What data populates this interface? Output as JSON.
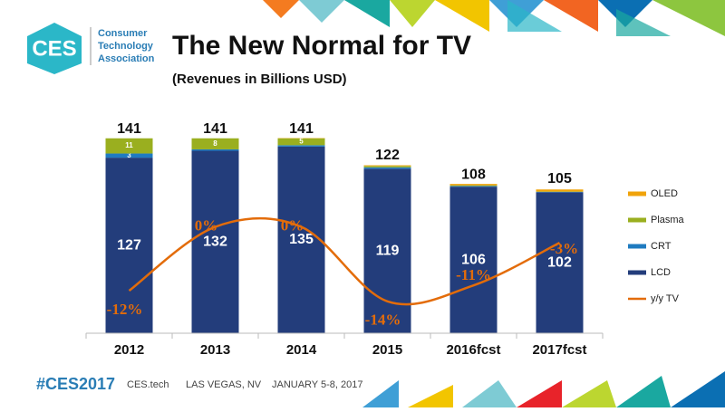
{
  "header": {
    "logo": "CES",
    "org": [
      "Consumer",
      "Technology",
      "Association"
    ]
  },
  "chart_data": {
    "type": "stacked_bar_line",
    "title": "The New Normal for TV",
    "subtitle": "(Revenues in Billions  USD)",
    "categories": [
      "2012",
      "2013",
      "2014",
      "2015",
      "2016fcst",
      "2017fcst"
    ],
    "totals": [
      141,
      141,
      141,
      122,
      108,
      105
    ],
    "ylim": [
      0,
      150
    ],
    "y2lim": [
      -20,
      19
    ],
    "series": [
      {
        "name": "LCD",
        "color": "#233d7b",
        "values": [
          127,
          132,
          135,
          119,
          106,
          102
        ],
        "value_labels": [
          "127",
          "132",
          "135",
          "119",
          "106",
          "102"
        ]
      },
      {
        "name": "CRT",
        "color": "#1f7bc0",
        "values": [
          3,
          1,
          1,
          1,
          0.5,
          0.3
        ],
        "value_labels": [
          "3",
          null,
          null,
          null,
          null,
          null
        ]
      },
      {
        "name": "Plasma",
        "color": "#9aaf1f",
        "values": [
          11,
          8,
          5,
          1,
          0.5,
          0.2
        ],
        "value_labels": [
          "11",
          "8",
          "5",
          null,
          null,
          null
        ]
      },
      {
        "name": "OLED",
        "color": "#f0a30a",
        "values": [
          0,
          0,
          0.2,
          0.5,
          1,
          1.5
        ],
        "value_labels": [
          null,
          null,
          null,
          null,
          null,
          null
        ]
      },
      {
        "name": "y/y TV",
        "color": "#e36c0a",
        "axis": "y2",
        "values": [
          -12,
          0,
          0,
          -14,
          -11,
          -3
        ],
        "value_labels": [
          "-12%",
          "0%",
          "0%",
          "-14%",
          "-11%",
          "-3%"
        ]
      }
    ]
  },
  "footer": {
    "tag": "#CES2017",
    "site": "CES.tech",
    "place": "LAS VEGAS, NV",
    "date": "JANUARY 5-8, 2017"
  }
}
